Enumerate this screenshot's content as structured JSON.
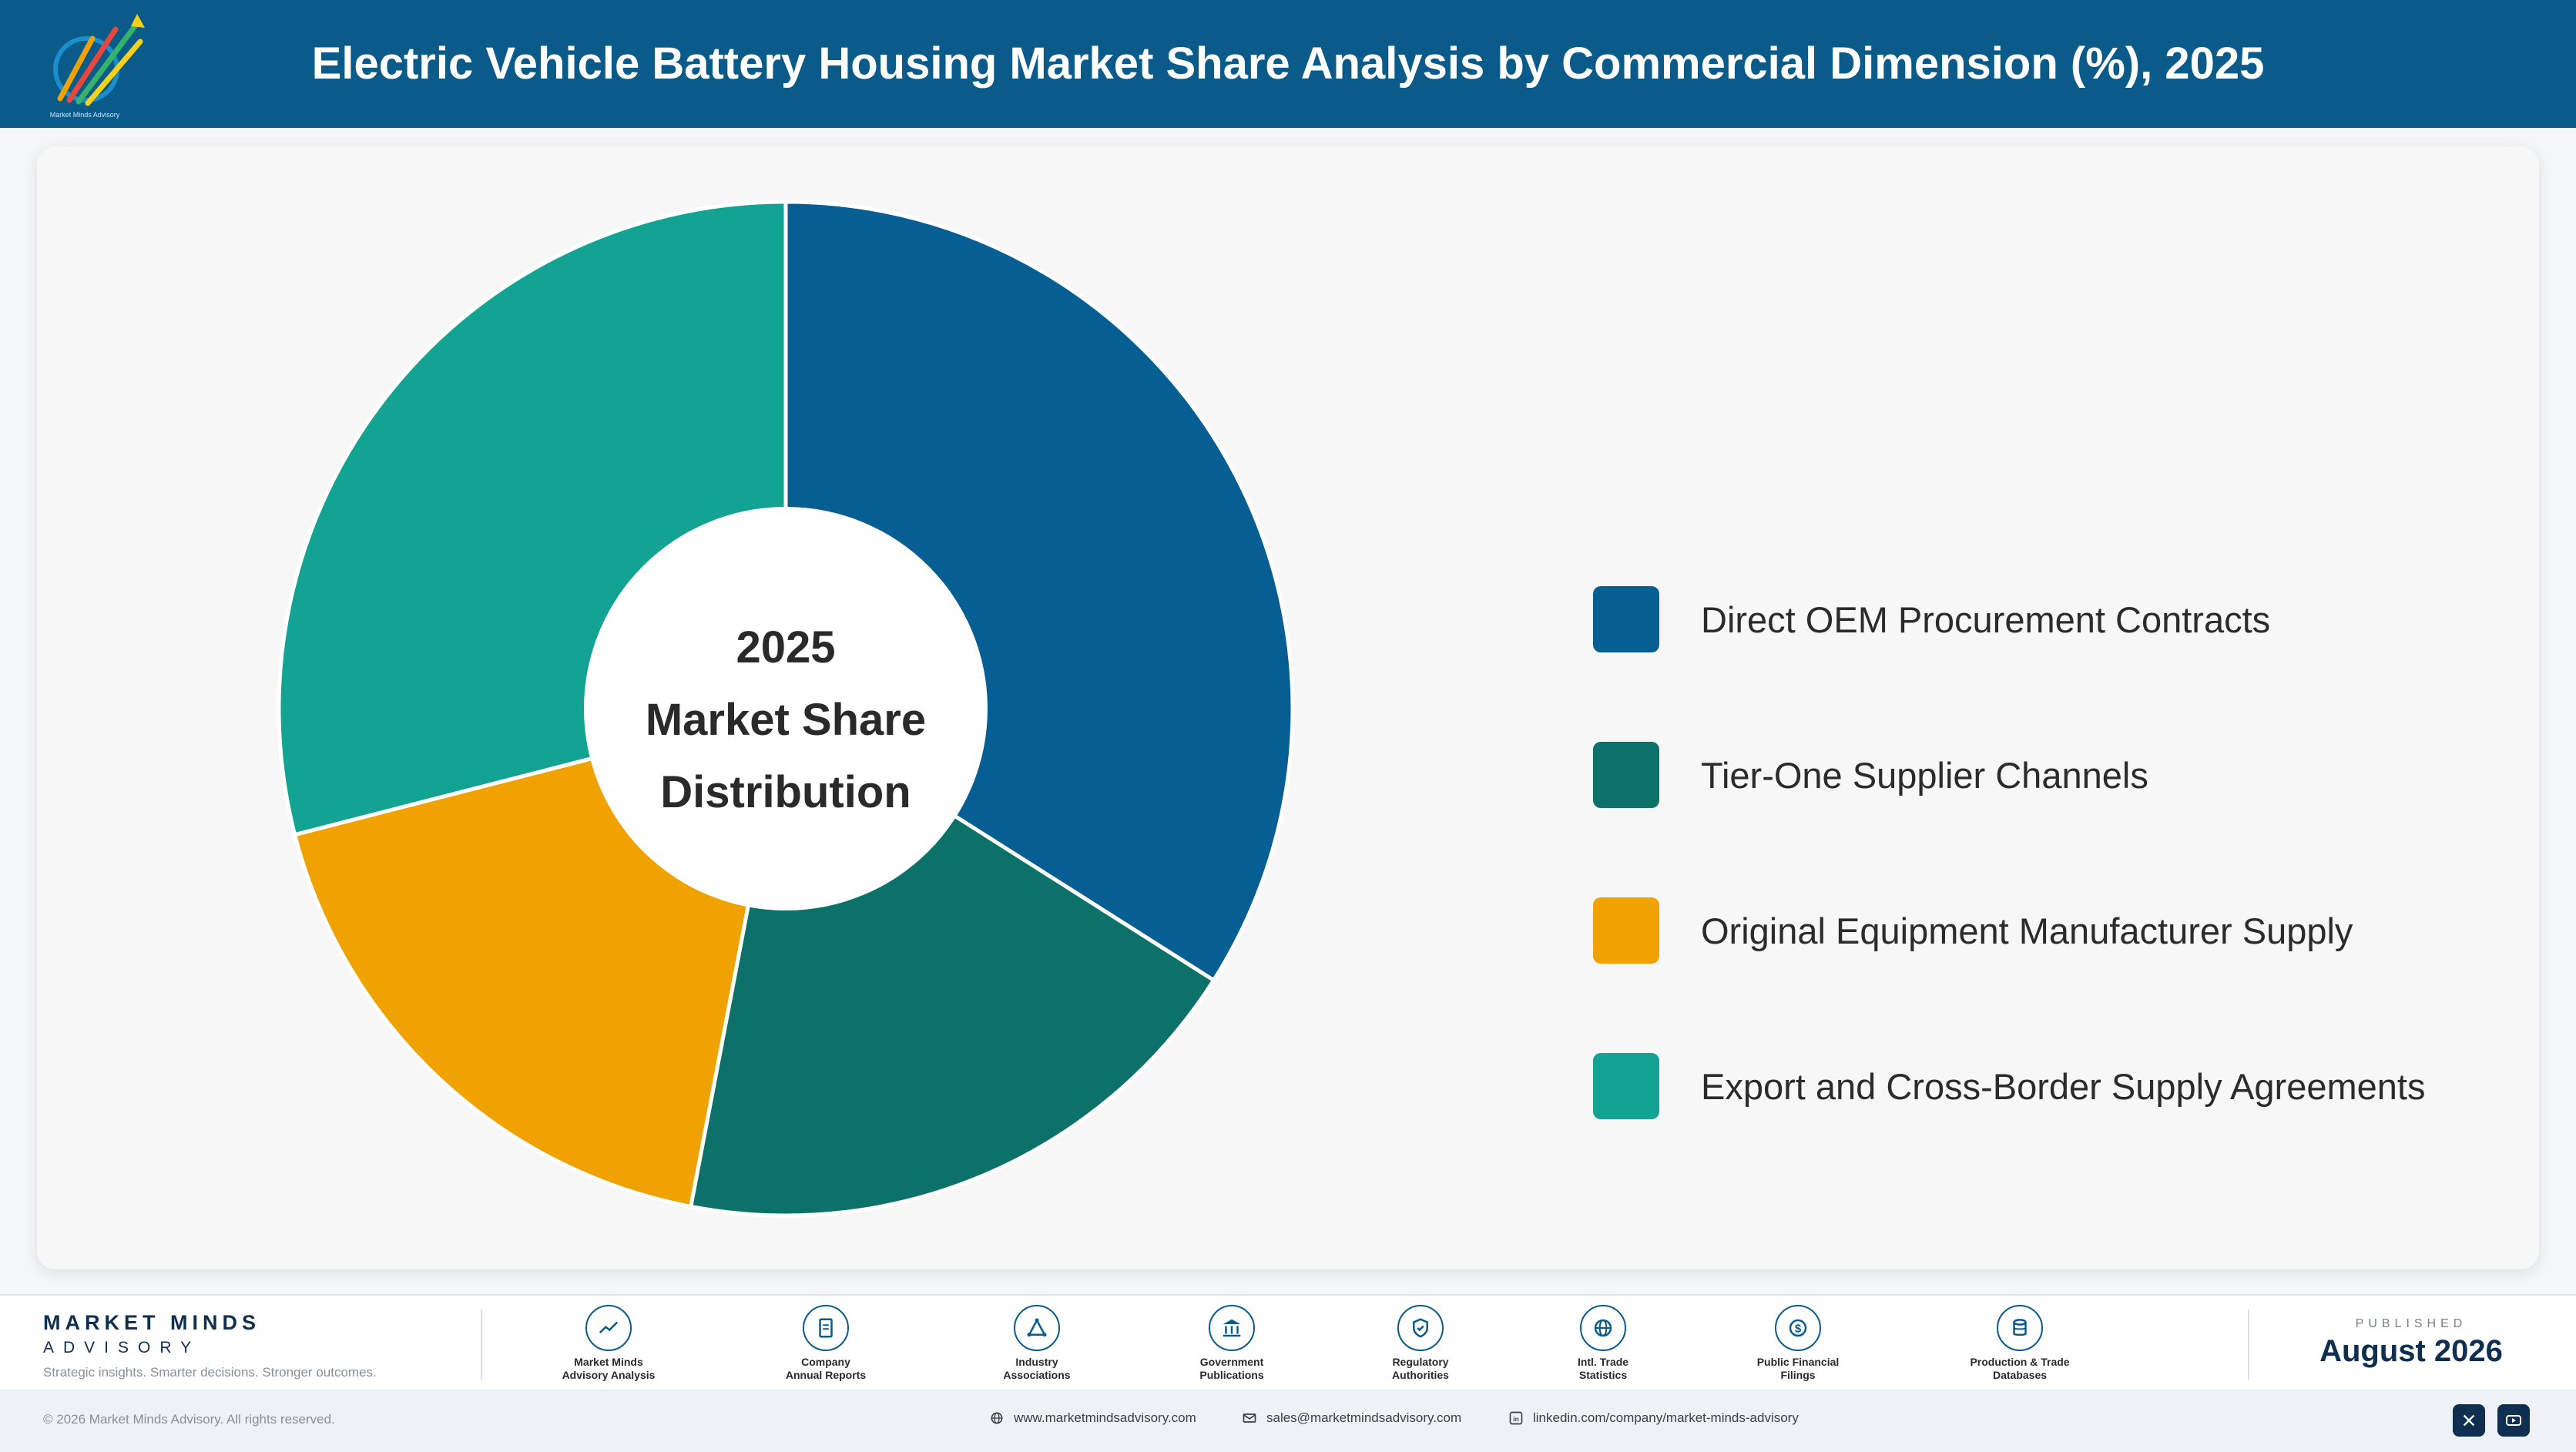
{
  "header": {
    "title": "Electric Vehicle Battery Housing Market Share Analysis by Commercial Dimension (%), 2025",
    "logo_caption": "Market Minds Advisory"
  },
  "chart_data": {
    "type": "pie",
    "donut": true,
    "center_text": [
      "2025",
      "Market Share",
      "Distribution"
    ],
    "categories": [
      "Direct OEM Procurement Contracts",
      "Tier-One Supplier Channels",
      "Original Equipment Manufacturer Supply",
      "Export and Cross-Border Supply Agreements"
    ],
    "values": [
      34,
      19,
      18,
      29
    ],
    "colors": [
      "#065e92",
      "#0c7269",
      "#f0a202",
      "#12a392"
    ],
    "legend_position": "right"
  },
  "footer": {
    "brand_name": "MARKET MINDS",
    "brand_sub": "ADVISORY",
    "tagline": "Strategic insights. Smarter decisions. Stronger outcomes.",
    "sources": [
      {
        "label": "Market Minds\nAdvisory Analysis",
        "icon": "trend-chart-icon"
      },
      {
        "label": "Company\nAnnual Reports",
        "icon": "document-icon"
      },
      {
        "label": "Industry\nAssociations",
        "icon": "network-icon"
      },
      {
        "label": "Government\nPublications",
        "icon": "government-building-icon"
      },
      {
        "label": "Regulatory\nAuthorities",
        "icon": "shield-check-icon"
      },
      {
        "label": "Intl. Trade\nStatistics",
        "icon": "globe-icon"
      },
      {
        "label": "Public Financial\nFilings",
        "icon": "dollar-coin-icon"
      },
      {
        "label": "Production & Trade\nDatabases",
        "icon": "database-icon"
      }
    ],
    "published_label": "PUBLISHED",
    "published_date": "August 2026",
    "copyright": "© 2026 Market Minds Advisory. All rights reserved.",
    "website": "www.marketmindsadvisory.com",
    "email": "sales@marketmindsadvisory.com",
    "linkedin": "linkedin.com/company/market-minds-advisory"
  }
}
